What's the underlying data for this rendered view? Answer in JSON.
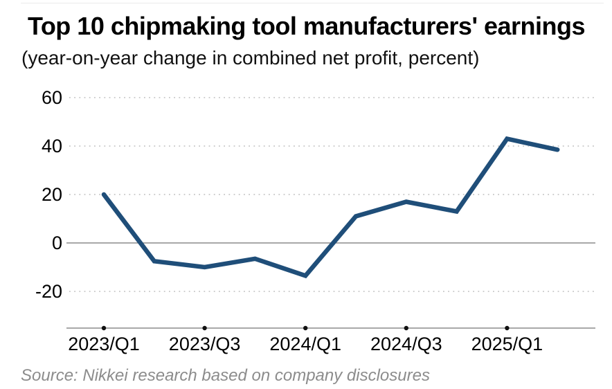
{
  "header": {
    "title": "Top 10 chipmaking tool manufacturers' earnings",
    "subtitle": "(year-on-year change in combined net profit, percent)"
  },
  "footer": {
    "source": "Source: Nikkei research based on company disclosures"
  },
  "colors": {
    "line": "#1f4e79",
    "grid_dotted": "#c6c6c6",
    "axis": "#8c8c8c",
    "tick_dot": "#111111",
    "label_text": "#000000",
    "source_text": "#8c8c8c"
  },
  "chart_data": {
    "type": "line",
    "title": "Top 10 chipmaking tool manufacturers' earnings",
    "subtitle": "(year-on-year change in combined net profit, percent)",
    "categories": [
      "2023/Q1",
      "2023/Q2",
      "2023/Q3",
      "2023/Q4",
      "2024/Q1",
      "2024/Q2",
      "2024/Q3",
      "2024/Q4",
      "2025/Q1",
      "2025/Q2"
    ],
    "values": [
      20,
      -7.5,
      -10,
      -6.5,
      -13.5,
      11,
      17,
      13,
      43,
      38.5
    ],
    "series_name": "Year-on-year change in combined net profit (%)",
    "xlabel": "",
    "ylabel": "percent",
    "y_ticks": [
      60,
      40,
      20,
      0,
      -20
    ],
    "x_tick_labels": [
      "2023/Q1",
      "2023/Q3",
      "2024/Q1",
      "2024/Q3",
      "2025/Q1"
    ],
    "x_tick_indices": [
      0,
      2,
      4,
      6,
      8
    ],
    "ylim": [
      -30,
      65
    ],
    "grid": "horizontal dotted, solid zero line",
    "legend": "none",
    "source": "Source: Nikkei research based on company disclosures"
  }
}
